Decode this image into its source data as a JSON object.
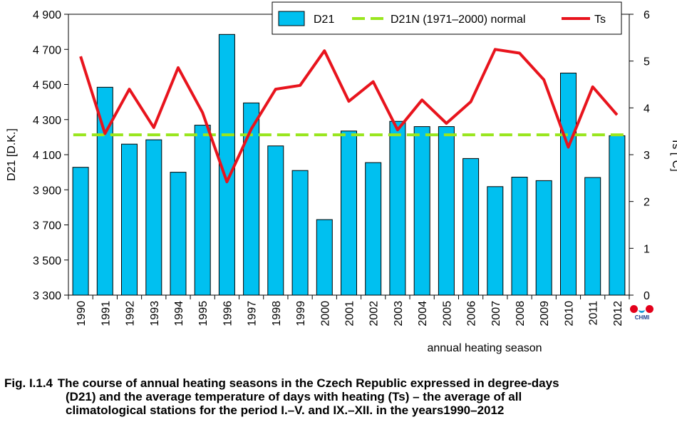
{
  "chart_data": {
    "type": "bar",
    "categories": [
      "1990",
      "1991",
      "1992",
      "1993",
      "1994",
      "1995",
      "1996",
      "1997",
      "1998",
      "1999",
      "2000",
      "2001",
      "2002",
      "2003",
      "2004",
      "2005",
      "2006",
      "2007",
      "2008",
      "2009",
      "2010",
      "2011",
      "2012"
    ],
    "series": [
      {
        "name": "D21",
        "type": "bar",
        "axis": "left",
        "color": "#00c0f0",
        "values": [
          4028,
          4484,
          4160,
          4185,
          4000,
          4268,
          4785,
          4395,
          4150,
          4010,
          3730,
          4235,
          4055,
          4290,
          4260,
          4260,
          4078,
          3918,
          3972,
          3952,
          4565,
          3970,
          4208
        ]
      },
      {
        "name": "D21N (1971–2000) normal",
        "type": "line",
        "style": "dashed",
        "axis": "left",
        "color": "#99e61e",
        "value": 4213
      },
      {
        "name": "Ts",
        "type": "line",
        "axis": "right",
        "color": "#e8141d",
        "values": [
          5.1,
          3.45,
          4.4,
          3.58,
          4.86,
          3.9,
          2.42,
          3.55,
          4.4,
          4.48,
          5.22,
          4.14,
          4.56,
          3.53,
          4.17,
          3.67,
          4.13,
          5.25,
          5.17,
          4.6,
          3.16,
          4.45,
          3.85
        ]
      }
    ],
    "ylabel_left": "D21 [D.K.]",
    "ylabel_right": "Ts [°C]",
    "xlabel": "annual heating season",
    "ylim_left": [
      3300,
      4900
    ],
    "yticks_left": [
      "3 300",
      "3 500",
      "3 700",
      "3 900",
      "4 100",
      "4 300",
      "4 500",
      "4 700",
      "4 900"
    ],
    "ylim_right": [
      0,
      6
    ],
    "yticks_right": [
      "0",
      "1",
      "2",
      "3",
      "4",
      "5",
      "6"
    ],
    "legend_position": "top-right",
    "grid": false
  },
  "caption": {
    "figure_id": "Fig. I.1.4",
    "line1": "The course of annual heating seasons in the Czech Republic expressed in degree-days",
    "line2": "(D21) and the average temperature of days with heating (Ts) – the average of all",
    "line3": "climatological stations for the period I.–V. and IX.–XII. in the years1990–2012"
  },
  "logo": {
    "text": "CHMI"
  }
}
